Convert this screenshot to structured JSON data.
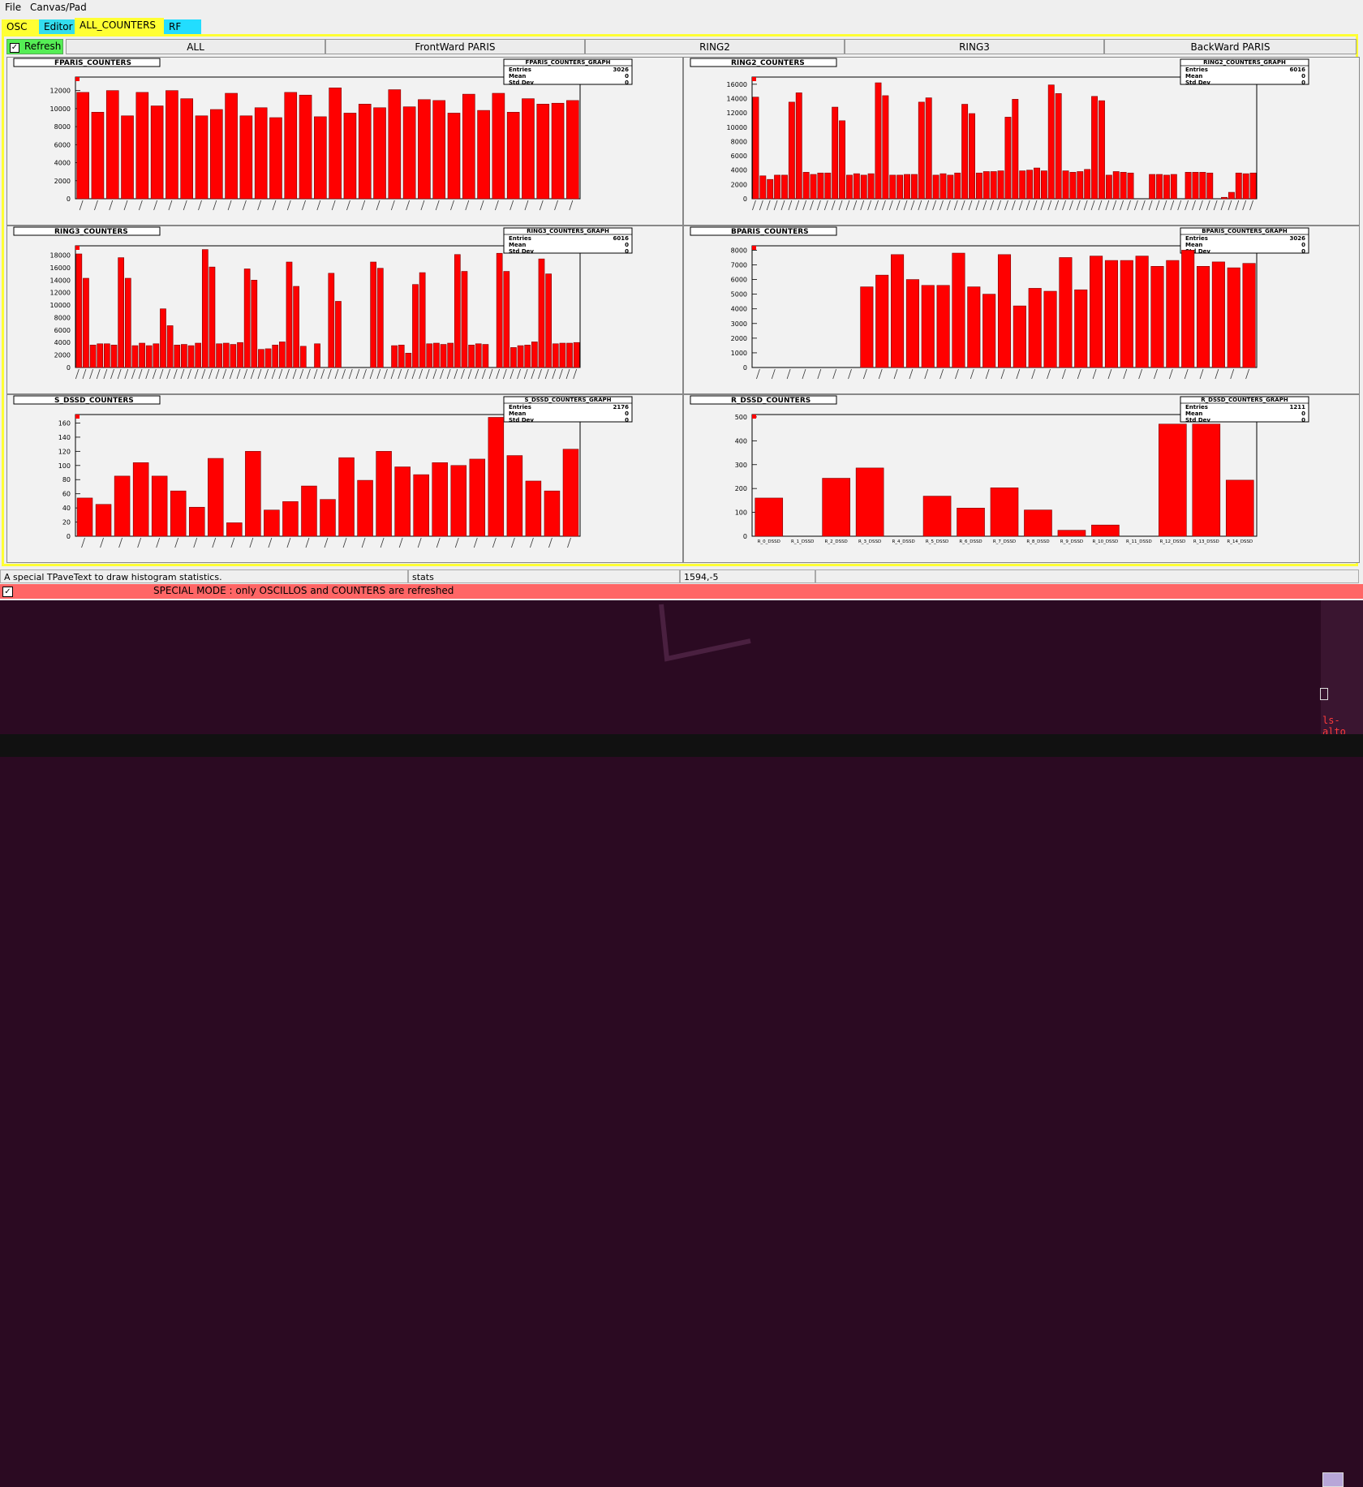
{
  "menu": {
    "file": "File",
    "canvas_pad": "Canvas/Pad"
  },
  "tabs": [
    {
      "label": "OSC",
      "color": "#ffff33"
    },
    {
      "label": "Editor",
      "color": "#33ddee"
    },
    {
      "label": "ALL_COUNTERS",
      "color": "#ffff33"
    },
    {
      "label": "RF",
      "color": "#22ddff"
    }
  ],
  "toolbar": {
    "refresh_label": "Refresh",
    "refresh_checked": "✓",
    "canvas_tabs": [
      "ALL",
      "FrontWard PARIS",
      "RING2",
      "RING3",
      "BackWard PARIS"
    ]
  },
  "status": {
    "message": "A special TPaveText to draw histogram statistics.",
    "object": "stats",
    "coords": "1594,-5",
    "extra": ""
  },
  "special": {
    "checked": "✓",
    "text": "SPECIAL MODE : only OSCILLOS and COUNTERS are refreshed"
  },
  "desktop": {
    "terminal_label": "ls-alto"
  },
  "colors": {
    "bar": "#ff0000",
    "frame": "#ffff33",
    "special": "#ff6666"
  },
  "stats_labels": {
    "entries": "Entries",
    "mean": "Mean",
    "std": "Std Dev"
  },
  "chart_data": [
    {
      "type": "bar",
      "title": "FPARIS_COUNTERS",
      "stats_title": "FPARIS_COUNTERS_GRAPH",
      "entries": "3026",
      "mean": "0",
      "std": "0",
      "ylim": [
        0,
        13500
      ],
      "yticks": [
        0,
        2000,
        4000,
        6000,
        8000,
        10000,
        12000
      ],
      "values": [
        11800,
        9600,
        12000,
        9200,
        11800,
        10300,
        12000,
        11100,
        9200,
        9900,
        11700,
        9200,
        10100,
        9000,
        11800,
        11500,
        9100,
        12300,
        9500,
        10500,
        10100,
        12100,
        10200,
        11000,
        10900,
        9500,
        11600,
        9800,
        11700,
        9600,
        11100,
        10500,
        10600,
        10900
      ],
      "cat_prefix": "PARIS_FR"
    },
    {
      "type": "bar",
      "title": "RING2_COUNTERS",
      "stats_title": "RING2_COUNTERS_GRAPH",
      "entries": "6016",
      "mean": "0",
      "std": "0",
      "ylim": [
        0,
        17000
      ],
      "yticks": [
        0,
        2000,
        4000,
        6000,
        8000,
        10000,
        12000,
        14000,
        16000
      ],
      "values": [
        14200,
        3200,
        2700,
        3300,
        3300,
        13500,
        14800,
        3700,
        3400,
        3600,
        3600,
        12800,
        10900,
        3300,
        3500,
        3300,
        3500,
        16200,
        14400,
        3300,
        3300,
        3400,
        3400,
        13500,
        14100,
        3300,
        3500,
        3300,
        3600,
        13200,
        11900,
        3600,
        3800,
        3800,
        3900,
        11400,
        13900,
        3900,
        4000,
        4300,
        3900,
        15900,
        14700,
        3900,
        3700,
        3800,
        4100,
        14300,
        13700,
        3300,
        3800,
        3700,
        3600,
        0,
        0,
        3400,
        3400,
        3300,
        3400,
        0,
        3700,
        3700,
        3700,
        3600,
        0,
        200,
        900,
        3600,
        3500,
        3600
      ],
      "cat_prefix": "R2_"
    },
    {
      "type": "bar",
      "title": "RING3_COUNTERS",
      "stats_title": "RING3_COUNTERS_GRAPH",
      "entries": "6016",
      "mean": "0",
      "std": "0",
      "ylim": [
        0,
        19500
      ],
      "yticks": [
        0,
        2000,
        4000,
        6000,
        8000,
        10000,
        12000,
        14000,
        16000,
        18000
      ],
      "values": [
        18200,
        14300,
        3600,
        3800,
        3800,
        3600,
        17600,
        14300,
        3500,
        3900,
        3500,
        3800,
        9400,
        6700,
        3600,
        3700,
        3500,
        3900,
        18900,
        16100,
        3800,
        3900,
        3700,
        4000,
        15800,
        14000,
        2900,
        3000,
        3600,
        4100,
        16900,
        13000,
        3400,
        0,
        3800,
        0,
        15100,
        10600,
        0,
        0,
        0,
        0,
        16900,
        15900,
        0,
        3500,
        3600,
        2300,
        13300,
        15200,
        3800,
        3900,
        3700,
        3900,
        18100,
        15400,
        3600,
        3800,
        3700,
        0,
        18300,
        15400,
        3200,
        3500,
        3600,
        4100,
        17400,
        15000,
        3800,
        3900,
        3900,
        4000
      ],
      "cat_prefix": "R3_"
    },
    {
      "type": "bar",
      "title": "BPARIS_COUNTERS",
      "stats_title": "BPARIS_COUNTERS_GRAPH",
      "entries": "3026",
      "mean": "0",
      "std": "0",
      "ylim": [
        0,
        8300
      ],
      "yticks": [
        0,
        1000,
        2000,
        3000,
        4000,
        5000,
        6000,
        7000,
        8000
      ],
      "values": [
        0,
        0,
        0,
        0,
        0,
        0,
        0,
        5500,
        6300,
        7700,
        6000,
        5600,
        5600,
        7800,
        5500,
        5000,
        7700,
        4200,
        5400,
        5200,
        7500,
        5300,
        7600,
        7300,
        7300,
        7600,
        6900,
        7300,
        8000,
        6900,
        7200,
        6800,
        7100
      ],
      "cat_prefix": "PARIS_BW"
    },
    {
      "type": "bar",
      "title": "S_DSSD_COUNTERS",
      "stats_title": "S_DSSD_COUNTERS_GRAPH",
      "entries": "2176",
      "mean": "0",
      "std": "0",
      "ylim": [
        0,
        172
      ],
      "yticks": [
        0,
        20,
        40,
        60,
        80,
        100,
        120,
        140,
        160
      ],
      "values": [
        54,
        45,
        85,
        104,
        85,
        64,
        41,
        110,
        19,
        120,
        37,
        49,
        71,
        52,
        111,
        79,
        120,
        98,
        87,
        104,
        100,
        109,
        168,
        114,
        78,
        64,
        123
      ],
      "cat_prefix": "S"
    },
    {
      "type": "bar",
      "title": "R_DSSD_COUNTERS",
      "stats_title": "R_DSSD_COUNTERS_GRAPH",
      "entries": "1211",
      "mean": "0",
      "std": "0",
      "ylim": [
        0,
        510
      ],
      "yticks": [
        0,
        100,
        200,
        300,
        400,
        500
      ],
      "values": [
        160,
        0,
        243,
        286,
        0,
        168,
        118,
        203,
        110,
        25,
        47,
        0,
        470,
        470,
        235
      ],
      "categories": [
        "R_0_DSSD",
        "R_1_DSSD",
        "R_2_DSSD",
        "R_3_DSSD",
        "R_4_DSSD",
        "R_5_DSSD",
        "R_6_DSSD",
        "R_7_DSSD",
        "R_8_DSSD",
        "R_9_DSSD",
        "R_10_DSSD",
        "R_11_DSSD",
        "R_12_DSSD",
        "R_13_DSSD",
        "R_14_DSSD"
      ]
    }
  ]
}
